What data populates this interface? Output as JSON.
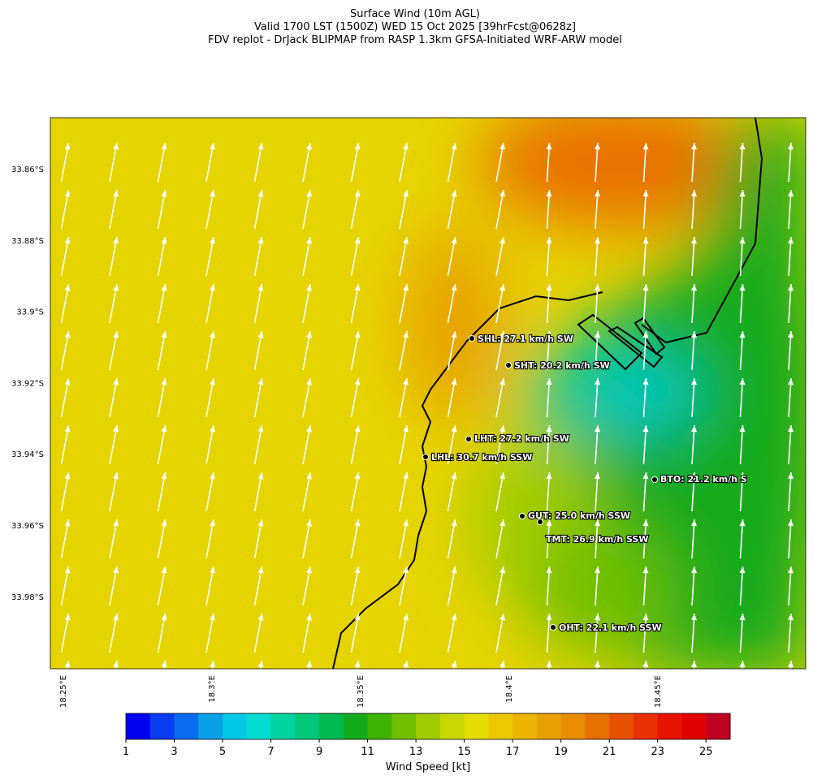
{
  "title": [
    "Surface Wind (10m AGL)",
    "Valid 1700 LST (1500Z) WED 15 Oct 2025 [39hrFcst@0628z]",
    "FDV replot - DrJack BLIPMAP from RASP 1.3km GFSA-Initiated WRF-ARW model"
  ],
  "map": {
    "lat_labels": [
      "33.86°S",
      "33.88°S",
      "33.9°S",
      "33.92°S",
      "33.94°S",
      "33.96°S",
      "33.98°S"
    ],
    "lon_labels": [
      "18.25°E",
      "18.3°E",
      "18.35°E",
      "18.4°E",
      "18.45°E"
    ],
    "stations": [
      "SHL: 27.1 km/h SW",
      "SHT: 20.2 km/h SW",
      "LHT: 27.2 km/h SW",
      "LHL: 30.7 km/h SSW",
      "BTO: 21.2 km/h S",
      "GUT: 25.0 km/h SSW",
      "TMT: 26.9 km/h SSW",
      "OHT: 22.1 km/h SSW"
    ]
  },
  "colorbar": {
    "label": "Wind Speed [kt]",
    "lim": [
      1,
      26
    ],
    "ticks": [
      1,
      3,
      5,
      7,
      9,
      11,
      13,
      15,
      17,
      19,
      21,
      23,
      25
    ],
    "colors": [
      "#0000f0",
      "#0a3cf0",
      "#0a6cf0",
      "#0aa0e8",
      "#00c8e6",
      "#00dcd2",
      "#00d2a0",
      "#00c878",
      "#00b850",
      "#14aa1e",
      "#3cb400",
      "#6ec000",
      "#a0cc00",
      "#c8d800",
      "#e6dc00",
      "#ecc800",
      "#ebb400",
      "#e8a000",
      "#e88c00",
      "#e87000",
      "#e85000",
      "#e83000",
      "#e81400",
      "#e00000",
      "#c00020"
    ]
  }
}
